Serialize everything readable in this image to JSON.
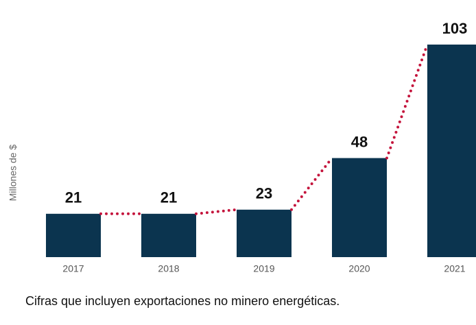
{
  "chart_data": {
    "type": "bar",
    "categories": [
      "2017",
      "2018",
      "2019",
      "2020",
      "2021"
    ],
    "values": [
      21,
      21,
      23,
      48,
      103
    ],
    "color": "#0b344f",
    "line_color": "#c4143c",
    "y_label": "Millones de $",
    "footnote": "Cifras que incluyen exportaciones no minero energéticas."
  }
}
